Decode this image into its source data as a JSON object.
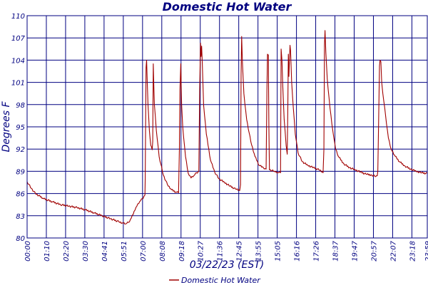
{
  "chart_data": {
    "type": "line",
    "title": "Domestic Hot Water",
    "xlabel": "03/22/23 (EST)",
    "ylabel": "Degrees F",
    "ylim": [
      80,
      110
    ],
    "xlim": [
      0,
      1440
    ],
    "y_ticks": [
      80,
      83,
      86,
      89,
      92,
      95,
      98,
      101,
      104,
      107,
      110
    ],
    "x_tick_labels": [
      "00:00",
      "01:10",
      "02:20",
      "03:30",
      "04:41",
      "05:51",
      "07:00",
      "08:08",
      "09:18",
      "10:27",
      "11:36",
      "12:45",
      "13:55",
      "15:05",
      "16:16",
      "17:26",
      "18:37",
      "19:47",
      "20:57",
      "22:07",
      "23:18",
      "23:59"
    ],
    "grid": true,
    "legend_position": "bottom-center",
    "line_color": "#a00000",
    "grid_color": "#000080",
    "series": [
      {
        "name": "Domestic Hot Water",
        "x_unit": "minutes after 00:00",
        "points": [
          [
            0,
            87.6
          ],
          [
            15,
            86.7
          ],
          [
            30,
            86.0
          ],
          [
            60,
            85.3
          ],
          [
            90,
            84.9
          ],
          [
            120,
            84.5
          ],
          [
            150,
            84.3
          ],
          [
            180,
            84.1
          ],
          [
            210,
            83.8
          ],
          [
            240,
            83.4
          ],
          [
            270,
            83.0
          ],
          [
            300,
            82.6
          ],
          [
            330,
            82.2
          ],
          [
            345,
            82.0
          ],
          [
            355,
            81.9
          ],
          [
            365,
            82.1
          ],
          [
            375,
            82.7
          ],
          [
            385,
            83.6
          ],
          [
            395,
            84.3
          ],
          [
            405,
            84.9
          ],
          [
            415,
            85.3
          ],
          [
            420,
            85.6
          ],
          [
            424,
            85.8
          ],
          [
            425,
            88.0
          ],
          [
            428,
            103.0
          ],
          [
            430,
            104.0
          ],
          [
            435,
            98.0
          ],
          [
            440,
            94.5
          ],
          [
            445,
            92.5
          ],
          [
            450,
            91.9
          ],
          [
            452,
            93.0
          ],
          [
            454,
            103.5
          ],
          [
            456,
            100.5
          ],
          [
            458,
            98.0
          ],
          [
            465,
            94.5
          ],
          [
            475,
            91.0
          ],
          [
            490,
            88.5
          ],
          [
            505,
            87.2
          ],
          [
            520,
            86.5
          ],
          [
            535,
            86.2
          ],
          [
            545,
            86.1
          ],
          [
            548,
            92.0
          ],
          [
            550,
            100.0
          ],
          [
            553,
            103.5
          ],
          [
            556,
            98.0
          ],
          [
            560,
            95.0
          ],
          [
            570,
            91.0
          ],
          [
            580,
            88.7
          ],
          [
            590,
            88.1
          ],
          [
            600,
            88.4
          ],
          [
            610,
            88.8
          ],
          [
            618,
            89.0
          ],
          [
            621,
            100.0
          ],
          [
            624,
            106.3
          ],
          [
            626,
            104.5
          ],
          [
            628,
            105.9
          ],
          [
            630,
            104.0
          ],
          [
            635,
            98.0
          ],
          [
            645,
            94.0
          ],
          [
            660,
            90.5
          ],
          [
            675,
            88.9
          ],
          [
            690,
            88.0
          ],
          [
            710,
            87.5
          ],
          [
            730,
            87.0
          ],
          [
            750,
            86.6
          ],
          [
            765,
            86.4
          ],
          [
            768,
            87.2
          ],
          [
            770,
            102.0
          ],
          [
            772,
            107.2
          ],
          [
            775,
            103.5
          ],
          [
            780,
            99.5
          ],
          [
            790,
            96.0
          ],
          [
            805,
            93.0
          ],
          [
            820,
            91.0
          ],
          [
            835,
            89.8
          ],
          [
            850,
            89.5
          ],
          [
            860,
            89.3
          ],
          [
            863,
            100.0
          ],
          [
            865,
            104.8
          ],
          [
            868,
            104.7
          ],
          [
            870,
            95.0
          ],
          [
            872,
            89.2
          ],
          [
            890,
            89.0
          ],
          [
            905,
            88.8
          ],
          [
            912,
            88.8
          ],
          [
            914,
            105.5
          ],
          [
            917,
            104.0
          ],
          [
            920,
            100.5
          ],
          [
            925,
            96.0
          ],
          [
            932,
            92.5
          ],
          [
            936,
            91.3
          ],
          [
            938,
            97.0
          ],
          [
            940,
            104.8
          ],
          [
            942,
            101.8
          ],
          [
            944,
            104.0
          ],
          [
            946,
            106.0
          ],
          [
            948,
            105.3
          ],
          [
            952,
            101.0
          ],
          [
            958,
            97.5
          ],
          [
            965,
            94.0
          ],
          [
            975,
            91.5
          ],
          [
            990,
            90.3
          ],
          [
            1010,
            89.8
          ],
          [
            1030,
            89.5
          ],
          [
            1050,
            89.2
          ],
          [
            1065,
            88.8
          ],
          [
            1068,
            92.0
          ],
          [
            1070,
            106.0
          ],
          [
            1072,
            108.0
          ],
          [
            1075,
            105.0
          ],
          [
            1080,
            101.5
          ],
          [
            1090,
            97.5
          ],
          [
            1100,
            94.5
          ],
          [
            1110,
            92.0
          ],
          [
            1120,
            91.0
          ],
          [
            1140,
            90.0
          ],
          [
            1160,
            89.5
          ],
          [
            1180,
            89.2
          ],
          [
            1200,
            88.9
          ],
          [
            1220,
            88.6
          ],
          [
            1240,
            88.5
          ],
          [
            1255,
            88.3
          ],
          [
            1260,
            88.4
          ],
          [
            1262,
            89.0
          ],
          [
            1265,
            96.0
          ],
          [
            1268,
            103.2
          ],
          [
            1270,
            104.0
          ],
          [
            1273,
            103.8
          ],
          [
            1276,
            101.0
          ],
          [
            1280,
            99.5
          ],
          [
            1290,
            96.5
          ],
          [
            1300,
            93.5
          ],
          [
            1310,
            92.0
          ],
          [
            1325,
            91.0
          ],
          [
            1340,
            90.3
          ],
          [
            1360,
            89.7
          ],
          [
            1380,
            89.3
          ],
          [
            1400,
            89.0
          ],
          [
            1420,
            88.8
          ],
          [
            1440,
            88.7
          ]
        ]
      }
    ]
  }
}
